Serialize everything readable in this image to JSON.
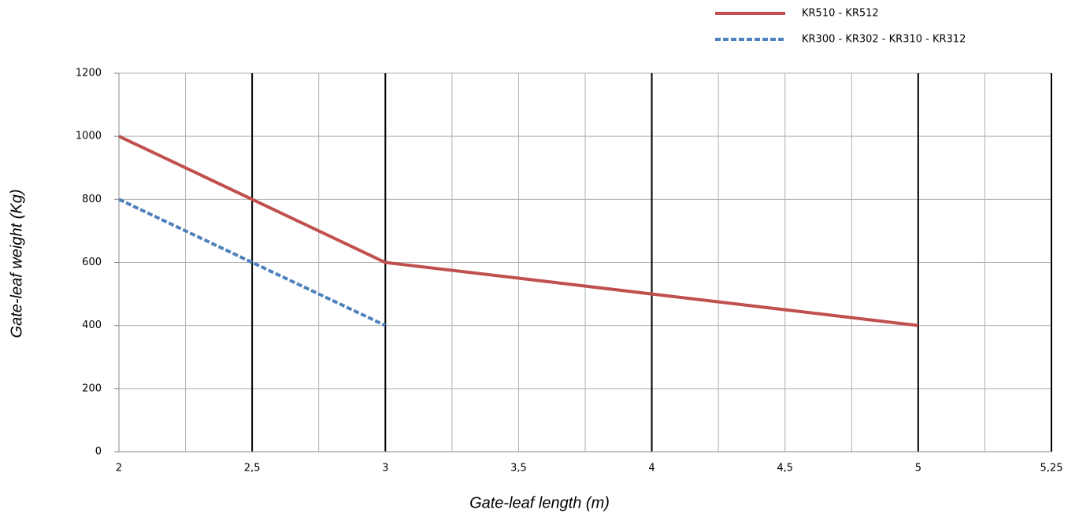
{
  "chart_data": {
    "type": "line",
    "x_label": "Gate-leaf length (m)",
    "y_label": "Gate-leaf weight (Kg)",
    "categories": [
      "2",
      "2,5",
      "3",
      "3,5",
      "4",
      "4,5",
      "5",
      "5,25"
    ],
    "series": [
      {
        "name": "KR510 - KR512",
        "color": "#c0504d",
        "dash": false,
        "values": [
          1000,
          800,
          600,
          550,
          500,
          450,
          400,
          null
        ]
      },
      {
        "name": "KR300  - KR302 - KR310 - KR312",
        "color": "#4f81bd",
        "dash": true,
        "values": [
          800,
          600,
          400,
          null,
          null,
          null,
          null,
          null
        ]
      }
    ],
    "ylim": [
      0,
      1200
    ],
    "yticks": [
      0,
      200,
      400,
      600,
      800,
      1000,
      1200
    ],
    "grid": true,
    "legend": "top-right"
  }
}
